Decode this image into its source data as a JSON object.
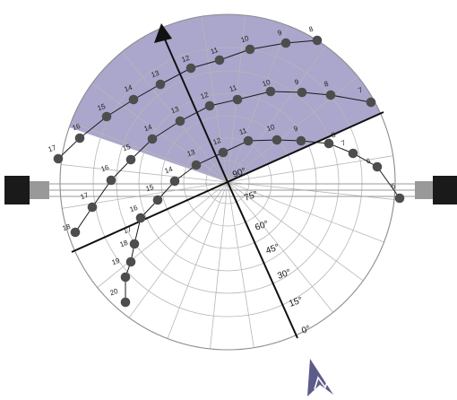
{
  "colors": {
    "sector": "#aaa6cc",
    "grid": "#b7b7b7",
    "dot": "#4d4d4d",
    "north_arrow": "#5c5b89",
    "wall_dark": "#1a1a1a",
    "wall_light": "#999999"
  },
  "altitude_labels": [
    "90°",
    "75°",
    "60°",
    "45°",
    "30°",
    "15°",
    "0°"
  ],
  "sun_paths": [
    {
      "name": "path-1",
      "points": [
        {
          "hour": "17",
          "label": "17"
        },
        {
          "hour": "16",
          "label": "16"
        },
        {
          "hour": "15",
          "label": "15"
        },
        {
          "hour": "14",
          "label": "14"
        },
        {
          "hour": "13",
          "label": "13"
        },
        {
          "hour": "12",
          "label": "12"
        },
        {
          "hour": "11",
          "label": "11"
        },
        {
          "hour": "10",
          "label": "10"
        },
        {
          "hour": "9",
          "label": "9"
        },
        {
          "hour": "8",
          "label": "8"
        }
      ]
    },
    {
      "name": "path-2",
      "points": [
        {
          "hour": "18",
          "label": "18"
        },
        {
          "hour": "17",
          "label": "17"
        },
        {
          "hour": "16",
          "label": "16"
        },
        {
          "hour": "15",
          "label": "15"
        },
        {
          "hour": "14",
          "label": "14"
        },
        {
          "hour": "13",
          "label": "13"
        },
        {
          "hour": "12",
          "label": "12"
        },
        {
          "hour": "11",
          "label": "11"
        },
        {
          "hour": "10",
          "label": "10"
        },
        {
          "hour": "9",
          "label": "9"
        },
        {
          "hour": "8",
          "label": "8"
        },
        {
          "hour": "7",
          "label": "7"
        }
      ]
    },
    {
      "name": "path-3",
      "points": [
        {
          "hour": "20",
          "label": "20"
        },
        {
          "hour": "19",
          "label": "19"
        },
        {
          "hour": "18",
          "label": "18"
        },
        {
          "hour": "17",
          "label": "17"
        },
        {
          "hour": "16",
          "label": "16"
        },
        {
          "hour": "15",
          "label": "15"
        },
        {
          "hour": "14",
          "label": "14"
        },
        {
          "hour": "13",
          "label": "13"
        },
        {
          "hour": "12",
          "label": "12"
        },
        {
          "hour": "11",
          "label": "11"
        },
        {
          "hour": "10",
          "label": "10"
        },
        {
          "hour": "9",
          "label": "9"
        },
        {
          "hour": "8",
          "label": "8"
        },
        {
          "hour": "7",
          "label": "7"
        },
        {
          "hour": "6",
          "label": "6"
        },
        {
          "hour": "5",
          "label": "5"
        }
      ]
    }
  ]
}
